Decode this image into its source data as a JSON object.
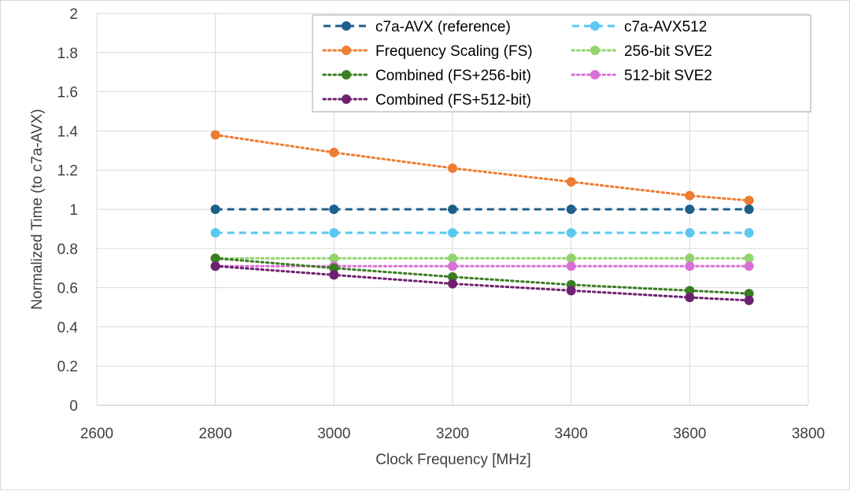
{
  "chart_data": {
    "type": "line",
    "title": "",
    "xlabel": "Clock Frequency [MHz]",
    "ylabel": "Normalized Time (to c7a-AVX)",
    "xlim": [
      2600,
      3800
    ],
    "ylim": [
      0,
      2
    ],
    "x_ticks": [
      2600,
      2800,
      3000,
      3200,
      3400,
      3600,
      3800
    ],
    "y_ticks": [
      0,
      0.2,
      0.4,
      0.6,
      0.8,
      1,
      1.2,
      1.4,
      1.6,
      1.8,
      2
    ],
    "x_tick_labels": [
      "2600",
      "2800",
      "3000",
      "3200",
      "3400",
      "3600",
      "3800"
    ],
    "y_tick_labels": [
      "0",
      "0.2",
      "0.4",
      "0.6",
      "0.8",
      "1",
      "1.2",
      "1.4",
      "1.6",
      "1.8",
      "2"
    ],
    "grid": true,
    "legend_position": "top-right",
    "x": [
      2800,
      3000,
      3200,
      3400,
      3600,
      3700
    ],
    "series": [
      {
        "name": "c7a-AVX (reference)",
        "color": "#1f5f8b",
        "dash": "dashed",
        "values": [
          1.0,
          1.0,
          1.0,
          1.0,
          1.0,
          1.0
        ]
      },
      {
        "name": "c7a-AVX512",
        "color": "#5bc8f0",
        "dash": "dashed",
        "values": [
          0.88,
          0.88,
          0.88,
          0.88,
          0.88,
          0.88
        ]
      },
      {
        "name": "Frequency Scaling (FS)",
        "color": "#ed7d31",
        "dash": "dotted",
        "values": [
          1.38,
          1.29,
          1.21,
          1.14,
          1.07,
          1.045
        ]
      },
      {
        "name": "256-bit SVE2",
        "color": "#92d36e",
        "dash": "dotted",
        "values": [
          0.75,
          0.75,
          0.75,
          0.75,
          0.75,
          0.75
        ]
      },
      {
        "name": "Combined (FS+256-bit)",
        "color": "#3a7d22",
        "dash": "dotted",
        "values": [
          0.75,
          0.7,
          0.655,
          0.615,
          0.585,
          0.57
        ]
      },
      {
        "name": "512-bit SVE2",
        "color": "#d96fd6",
        "dash": "dotted",
        "values": [
          0.71,
          0.71,
          0.71,
          0.71,
          0.71,
          0.71
        ]
      },
      {
        "name": "Combined (FS+512-bit)",
        "color": "#6f2070",
        "dash": "dotted",
        "values": [
          0.71,
          0.665,
          0.62,
          0.585,
          0.55,
          0.535
        ]
      }
    ]
  }
}
